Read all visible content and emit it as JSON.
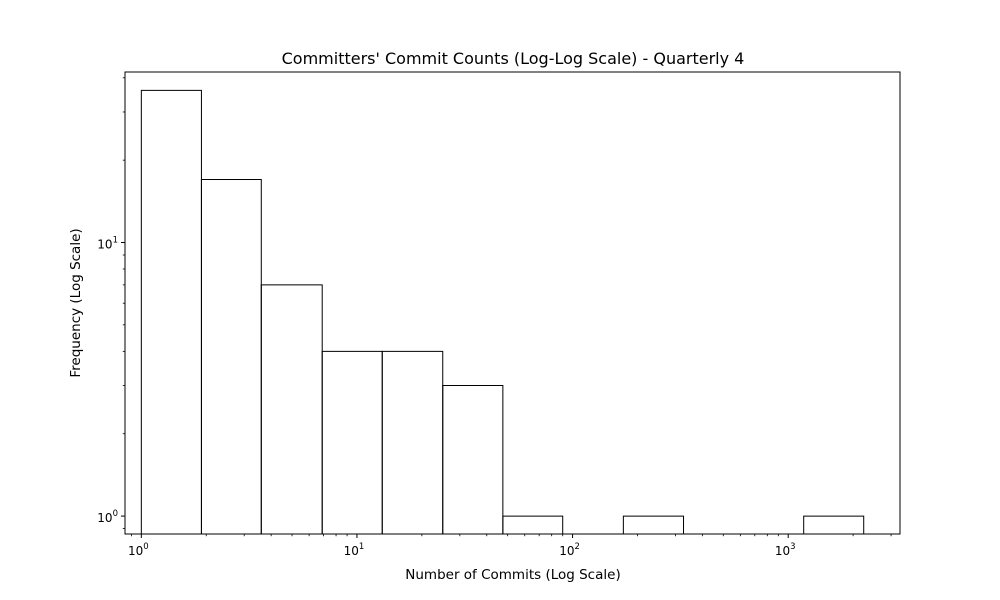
{
  "chart_data": {
    "type": "histogram",
    "title": "Committers' Commit Counts (Log-Log Scale) - Quarterly 4",
    "xlabel": "Number of Commits (Log Scale)",
    "ylabel": "Frequency (Log Scale)",
    "xscale": "log",
    "yscale": "log",
    "xlim": [
      0.84,
      3300
    ],
    "ylim": [
      0.86,
      42
    ],
    "grid": false,
    "x_major_ticks": [
      {
        "value": 1,
        "base": "10",
        "exp": "0"
      },
      {
        "value": 10,
        "base": "10",
        "exp": "1"
      },
      {
        "value": 100,
        "base": "10",
        "exp": "2"
      },
      {
        "value": 1000,
        "base": "10",
        "exp": "3"
      }
    ],
    "y_major_ticks": [
      {
        "value": 1,
        "base": "10",
        "exp": "0"
      },
      {
        "value": 10,
        "base": "10",
        "exp": "1"
      }
    ],
    "bins": [
      {
        "x0": 1,
        "x1": 1.9,
        "count": 36
      },
      {
        "x0": 1.9,
        "x1": 3.6,
        "count": 17
      },
      {
        "x0": 3.6,
        "x1": 6.9,
        "count": 7
      },
      {
        "x0": 6.9,
        "x1": 13.1,
        "count": 4
      },
      {
        "x0": 13.1,
        "x1": 25,
        "count": 4
      },
      {
        "x0": 25,
        "x1": 47.5,
        "count": 3
      },
      {
        "x0": 47.5,
        "x1": 90,
        "count": 1
      },
      {
        "x0": 90,
        "x1": 172,
        "count": 0
      },
      {
        "x0": 172,
        "x1": 327,
        "count": 1
      },
      {
        "x0": 327,
        "x1": 621,
        "count": 0
      },
      {
        "x0": 621,
        "x1": 1180,
        "count": 0
      },
      {
        "x0": 1180,
        "x1": 2240,
        "count": 1
      }
    ],
    "edge_color": "#000000",
    "face_color": "none"
  }
}
